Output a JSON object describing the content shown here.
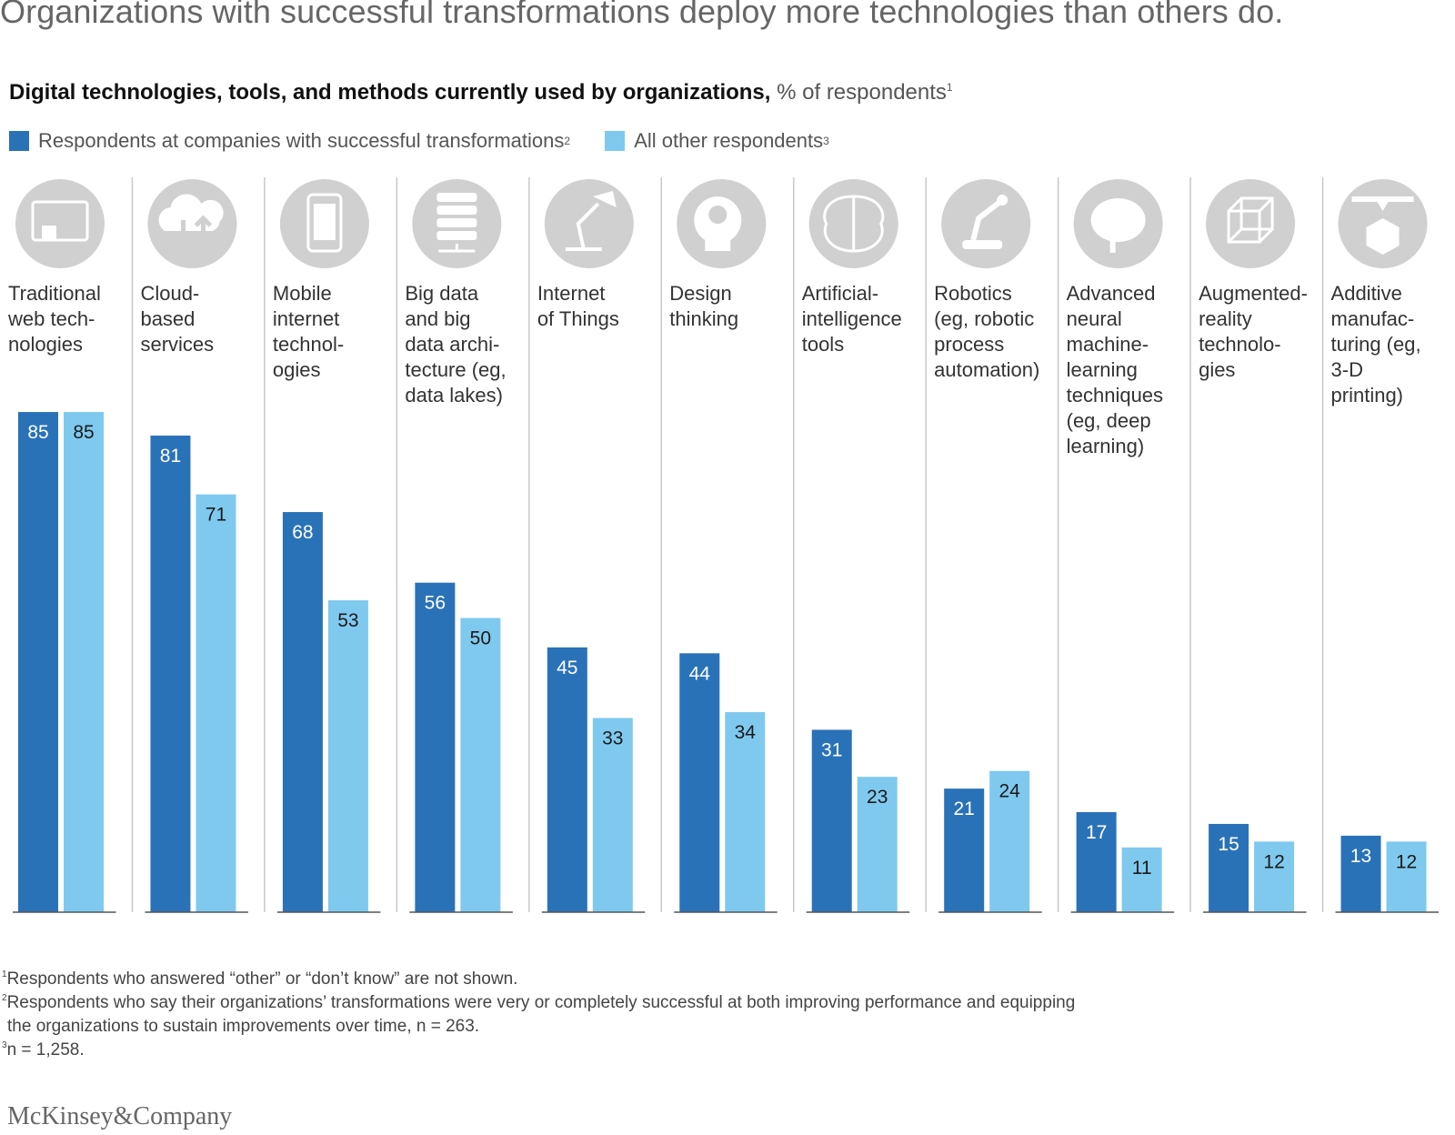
{
  "headline": "Organizations with successful transformations deploy more technologies than others do.",
  "subtitle_bold": "Digital technologies, tools, and methods currently used by organizations,",
  "subtitle_units": "% of respondents",
  "subtitle_sup": "1",
  "legend": [
    {
      "label": "Respondents at companies with successful transformations",
      "sup": "2",
      "color": "#2a72b8"
    },
    {
      "label": "All other respondents",
      "sup": "3",
      "color": "#7fc9ef"
    }
  ],
  "footnotes": [
    {
      "sup": "1",
      "text": "Respondents who answered “other” or “don’t know” are not shown."
    },
    {
      "sup": "2",
      "text": "Respondents who say their organizations’ transformations were very or completely successful at both improving performance and equipping"
    },
    {
      "sup": "",
      "text": " the organizations to sustain improvements over time, n = 263."
    },
    {
      "sup": "3",
      "text": "n = 1,258."
    }
  ],
  "brand": "McKinsey&Company",
  "colors": {
    "dark": "#2a72b8",
    "light": "#7fc9ef",
    "icon": "#d0d0d0",
    "divider": "#c8c8c8"
  },
  "chart_data": {
    "type": "bar",
    "title": "Digital technologies, tools, and methods currently used by organizations, % of respondents",
    "categories": [
      [
        "Traditional",
        "web tech-",
        "nologies"
      ],
      [
        "Cloud-",
        "based",
        "services"
      ],
      [
        "Mobile",
        "internet",
        "technol-",
        "ogies"
      ],
      [
        "Big data",
        "and big",
        "data archi-",
        "tecture (eg,",
        "data lakes)"
      ],
      [
        "Internet",
        "of Things"
      ],
      [
        "Design",
        "thinking"
      ],
      [
        "Artificial-",
        "intelligence",
        "tools"
      ],
      [
        "Robotics",
        "(eg, robotic",
        "process",
        "automation)"
      ],
      [
        "Advanced",
        "neural",
        "machine-",
        "learning",
        "techniques",
        "(eg, deep",
        "learning)"
      ],
      [
        "Augmented-",
        "reality",
        "technolo-",
        "gies"
      ],
      [
        "Additive",
        "manufac-",
        "turing (eg,",
        "3-D",
        "printing)"
      ]
    ],
    "icons": [
      "monitor-touch-icon",
      "cloud-sync-icon",
      "smartphone-icon",
      "server-stack-icon",
      "desk-lamp-icon",
      "head-bulb-icon",
      "brain-circuit-icon",
      "robot-arm-icon",
      "brain-icon",
      "cube-wireframe-icon",
      "3d-printer-icon"
    ],
    "series": [
      {
        "name": "Respondents at companies with successful transformations",
        "values": [
          85,
          81,
          68,
          56,
          45,
          44,
          31,
          21,
          17,
          15,
          13
        ]
      },
      {
        "name": "All other respondents",
        "values": [
          85,
          71,
          53,
          50,
          33,
          34,
          23,
          24,
          11,
          12,
          12
        ]
      }
    ],
    "ylim": [
      0,
      100
    ],
    "grid": false
  }
}
